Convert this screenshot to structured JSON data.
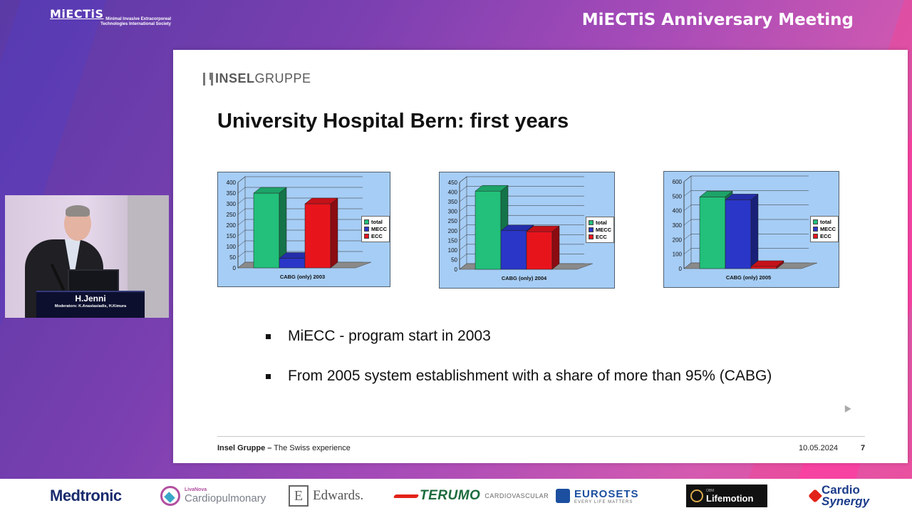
{
  "header": {
    "logo_main": "MiECTiS",
    "logo_sub": "Minimal Invasive Extracorporeal Technologies International Society",
    "event_title": "MiECTiS Anniversary Meeting"
  },
  "video": {
    "speaker_name": "H.Jenni",
    "moderators": "Moderators: K.Anastasiadis, H.Kimura"
  },
  "slide": {
    "brand_bold": "INSEL",
    "brand_light": "GRUPPE",
    "title": "University Hospital Bern: first years",
    "bullets": [
      "MiECC - program start in 2003",
      "From 2005 system establishment with a share of more than 95% (CABG)"
    ],
    "footer_bold": "Insel Gruppe –",
    "footer_text": "The Swiss experience",
    "date": "10.05.2024",
    "page": "7"
  },
  "colors": {
    "total": "#22c07a",
    "mecc": "#2a36c8",
    "ecc": "#e8141c",
    "chart_bg": "#a6cdf5"
  },
  "chart_data": [
    {
      "type": "bar",
      "xlabel": "CABG (only) 2003",
      "categories": [
        "CABG (only) 2003"
      ],
      "series": [
        {
          "name": "total",
          "values": [
            350
          ]
        },
        {
          "name": "MECC",
          "values": [
            45
          ]
        },
        {
          "name": "ECC",
          "values": [
            300
          ]
        }
      ],
      "ylim": [
        0,
        400
      ],
      "yticks": [
        0,
        50,
        100,
        150,
        200,
        250,
        300,
        350,
        400
      ],
      "grid": true,
      "legend": "right",
      "three_d": true
    },
    {
      "type": "bar",
      "xlabel": "CABG (only) 2004",
      "categories": [
        "CABG (only) 2004"
      ],
      "series": [
        {
          "name": "total",
          "values": [
            405
          ]
        },
        {
          "name": "MECC",
          "values": [
            200
          ]
        },
        {
          "name": "ECC",
          "values": [
            195
          ]
        }
      ],
      "ylim": [
        0,
        450
      ],
      "yticks": [
        0,
        50,
        100,
        150,
        200,
        250,
        300,
        350,
        400,
        450
      ],
      "grid": true,
      "legend": "right",
      "three_d": true
    },
    {
      "type": "bar",
      "xlabel": "CABG (only) 2005",
      "categories": [
        "CABG (only) 2005"
      ],
      "series": [
        {
          "name": "total",
          "values": [
            495
          ]
        },
        {
          "name": "MECC",
          "values": [
            475
          ]
        },
        {
          "name": "ECC",
          "values": [
            15
          ]
        }
      ],
      "ylim": [
        0,
        600
      ],
      "yticks": [
        0,
        100,
        200,
        300,
        400,
        500,
        600
      ],
      "grid": true,
      "legend": "right",
      "three_d": true
    }
  ],
  "sponsors": {
    "medtronic": "Medtronic",
    "livanova_small": "LivaNova",
    "livanova_big": "Cardiopulmonary",
    "edwards_letter": "E",
    "edwards": "Edwards.",
    "terumo": "TERUMO",
    "terumo_sub": "CARDIOVASCULAR",
    "eurosets": "EUROSETS",
    "eurosets_sub": "EVERY LIFE MATTERS",
    "lifemotion_small": "OBM",
    "lifemotion": "Lifemotion",
    "cardio1": "Cardio",
    "cardio2": "Synergy"
  }
}
